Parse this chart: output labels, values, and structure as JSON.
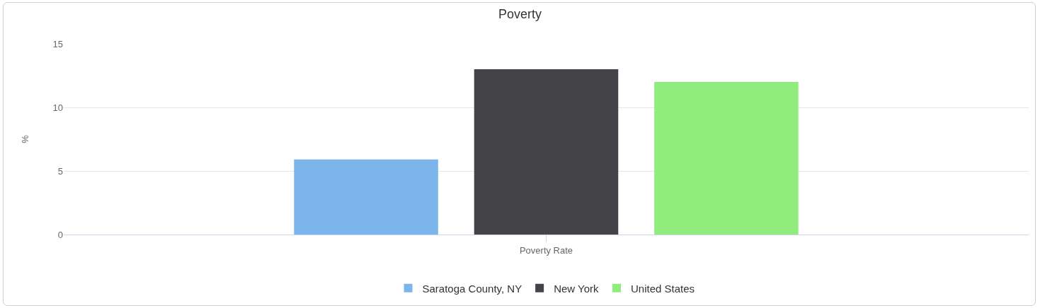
{
  "chart_data": {
    "type": "bar",
    "title": "Poverty",
    "ylabel": "%",
    "categories": [
      "Poverty Rate"
    ],
    "series": [
      {
        "name": "Saratoga County, NY",
        "color": "#7cb5ec",
        "values": [
          5.9
        ]
      },
      {
        "name": "New York",
        "color": "#434348",
        "values": [
          13.0
        ]
      },
      {
        "name": "United States",
        "color": "#90ed7d",
        "values": [
          12.0
        ]
      }
    ],
    "ylim": [
      0,
      15
    ],
    "yticks": [
      0,
      5,
      10,
      15
    ],
    "grid": "y",
    "legend": "bottom"
  }
}
